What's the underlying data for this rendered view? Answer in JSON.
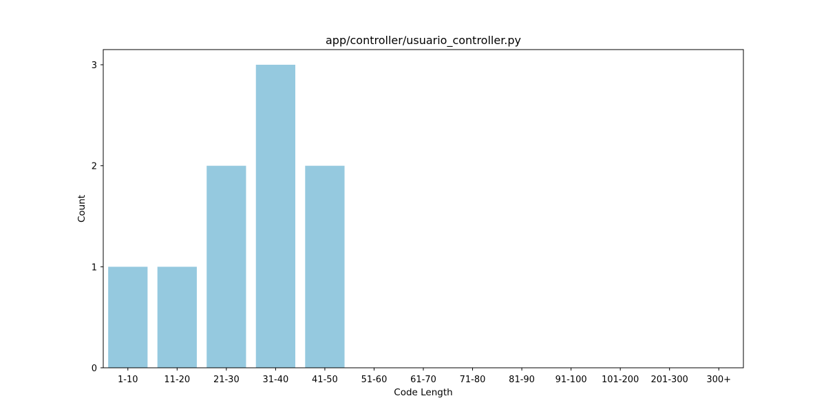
{
  "chart_data": {
    "type": "bar",
    "title": "app/controller/usuario_controller.py",
    "xlabel": "Code Length",
    "ylabel": "Count",
    "categories": [
      "1-10",
      "11-20",
      "21-30",
      "31-40",
      "41-50",
      "51-60",
      "61-70",
      "71-80",
      "81-90",
      "91-100",
      "101-200",
      "201-300",
      "300+"
    ],
    "values": [
      1,
      1,
      2,
      3,
      2,
      0,
      0,
      0,
      0,
      0,
      0,
      0,
      0
    ],
    "yticks": [
      0,
      1,
      2,
      3
    ],
    "ylim": [
      0,
      3.15
    ],
    "grid": false,
    "legend": "none",
    "bar_color": "#95c9df"
  }
}
